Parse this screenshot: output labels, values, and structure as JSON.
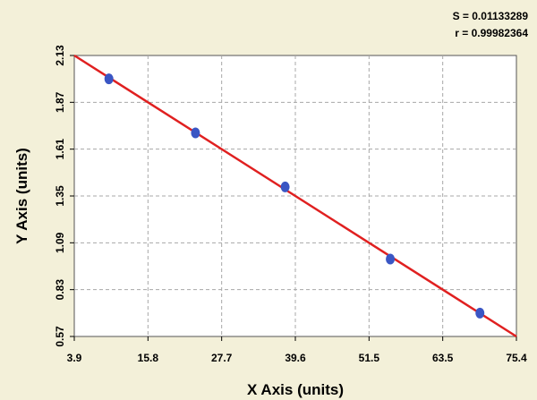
{
  "stats": {
    "s_label": "S = 0.01133289",
    "r_label": "r = 0.99982364"
  },
  "chart_data": {
    "type": "scatter",
    "title": "",
    "xlabel": "X Axis (units)",
    "ylabel": "Y Axis (units)",
    "xlim": [
      3.9,
      75.4
    ],
    "ylim": [
      0.57,
      2.13
    ],
    "x_ticks": [
      "3.9",
      "15.8",
      "27.7",
      "39.6",
      "51.5",
      "63.5",
      "75.4"
    ],
    "y_ticks": [
      "0.57",
      "0.83",
      "1.09",
      "1.35",
      "1.61",
      "1.87",
      "2.13"
    ],
    "grid": true,
    "series": [
      {
        "type": "scatter",
        "color": "#3a56c4",
        "points": [
          {
            "x": 9.5,
            "y": 2.0
          },
          {
            "x": 23.5,
            "y": 1.7
          },
          {
            "x": 38.0,
            "y": 1.4
          },
          {
            "x": 55.0,
            "y": 1.0
          },
          {
            "x": 69.5,
            "y": 0.7
          }
        ]
      },
      {
        "type": "line",
        "color": "#e02020",
        "points": [
          {
            "x": 3.9,
            "y": 2.13
          },
          {
            "x": 75.4,
            "y": 0.57
          }
        ]
      }
    ]
  }
}
